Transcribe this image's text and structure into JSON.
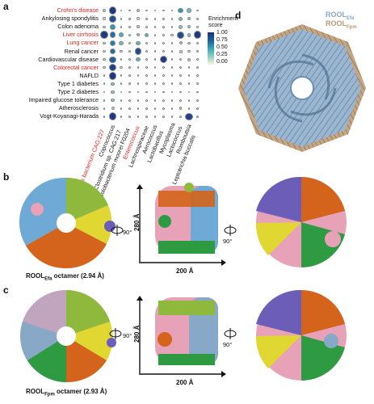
{
  "panel_labels": {
    "a": "a",
    "b": "b",
    "c": "c",
    "d": "d"
  },
  "colors": {
    "highlight_red": "#e0251c",
    "scale": [
      "#f6f4dc",
      "#8fd0c0",
      "#34a7b9",
      "#1d5f9c",
      "#1d2f7d"
    ],
    "rool_blue": "#87a8c6",
    "rool_tan": "#b69a77",
    "domain_yellow": "#e0d733",
    "domain_green": "#2e9b43",
    "domain_orange": "#d4641c",
    "domain_pink": "#e8a2b8",
    "domain_cyan": "#6fa9d6",
    "domain_purple": "#6c5db8",
    "domain_lime": "#8fb93c"
  },
  "chart_data": {
    "type": "heatmap",
    "subtype": "bubble",
    "legend_title": "Enrichment score",
    "legend_ticks": [
      "1.00",
      "0.75",
      "0.50",
      "0.25",
      "0.00"
    ],
    "legend_placement": "right",
    "rows": [
      {
        "label": "Crohn's disease",
        "highlight": true
      },
      {
        "label": "Ankylosing spondylitis",
        "highlight": false
      },
      {
        "label": "Colon adenoma",
        "highlight": false
      },
      {
        "label": "Liver cirrhosis",
        "highlight": true
      },
      {
        "label": "Lung cancer",
        "highlight": true
      },
      {
        "label": "Renal cancer",
        "highlight": false
      },
      {
        "label": "Cardiovascular disease",
        "highlight": false
      },
      {
        "label": "Colorectal cancer",
        "highlight": true
      },
      {
        "label": "NAFLD",
        "highlight": false
      },
      {
        "label": "Type 1 diabetes",
        "highlight": false
      },
      {
        "label": "Type 2 diabetes",
        "highlight": false
      },
      {
        "label": "Impaired glucose tolerance",
        "highlight": false
      },
      {
        "label": "Atherosclerosis",
        "highlight": false
      },
      {
        "label": "Vogt-Koyanagi-Harada",
        "highlight": false
      }
    ],
    "columns": [
      {
        "label": "Firmicutes bacterium CAG:227",
        "highlight": true
      },
      {
        "label": "Coprococcus",
        "highlight": false
      },
      {
        "label": "Clostridium sp. CAG:217",
        "highlight": false
      },
      {
        "label": "Solobacterium moorei F0204",
        "highlight": false
      },
      {
        "label": "Enterococcus",
        "highlight": true
      },
      {
        "label": "Lachnospiraceae",
        "highlight": false
      },
      {
        "label": "Aerococcus",
        "highlight": false
      },
      {
        "label": "Lactobacillus",
        "highlight": false
      },
      {
        "label": "Mycoplasma",
        "highlight": false
      },
      {
        "label": "Lactococcus",
        "highlight": false
      },
      {
        "label": "Romboutsia",
        "highlight": false
      },
      {
        "label": "Leptotrichia buccalis",
        "highlight": false
      }
    ],
    "values": [
      [
        0.15,
        0.95,
        0.05,
        0.05,
        0.2,
        0.05,
        0.05,
        0.05,
        0.05,
        0.55,
        0.35,
        0.05
      ],
      [
        0.1,
        0.85,
        0.05,
        0.05,
        0.1,
        0.05,
        0.05,
        0.05,
        0.05,
        0.35,
        0.25,
        0.05
      ],
      [
        0.1,
        0.55,
        0.05,
        0.1,
        0.15,
        0.05,
        0.05,
        0.05,
        0.05,
        0.3,
        0.2,
        0.05
      ],
      [
        0.95,
        0.7,
        0.45,
        0.1,
        0.25,
        0.4,
        0.05,
        0.05,
        0.1,
        0.85,
        0.3,
        0.95
      ],
      [
        0.1,
        0.65,
        0.35,
        0.1,
        0.4,
        0.05,
        0.05,
        0.05,
        0.05,
        0.2,
        0.15,
        0.05
      ],
      [
        0.1,
        0.7,
        0.1,
        0.05,
        0.85,
        0.05,
        0.05,
        0.05,
        0.05,
        0.2,
        0.1,
        0.05
      ],
      [
        0.1,
        0.75,
        0.05,
        0.05,
        0.4,
        0.05,
        0.05,
        0.95,
        0.05,
        0.15,
        0.2,
        0.05
      ],
      [
        0.1,
        0.9,
        0.1,
        0.05,
        0.05,
        0.05,
        0.05,
        0.05,
        0.05,
        0.1,
        0.05,
        0.05
      ],
      [
        0.05,
        0.95,
        0.05,
        0.05,
        0.05,
        0.05,
        0.05,
        0.05,
        0.05,
        0.1,
        0.05,
        0.05
      ],
      [
        0.05,
        0.3,
        0.05,
        0.05,
        0.05,
        0.05,
        0.05,
        0.05,
        0.05,
        0.05,
        0.05,
        0.05
      ],
      [
        0.05,
        0.25,
        0.05,
        0.05,
        0.05,
        0.05,
        0.05,
        0.05,
        0.05,
        0.05,
        0.05,
        0.05
      ],
      [
        0.05,
        0.25,
        0.05,
        0.05,
        0.05,
        0.05,
        0.05,
        0.05,
        0.05,
        0.05,
        0.05,
        0.05
      ],
      [
        0.05,
        0.2,
        0.05,
        0.05,
        0.05,
        0.05,
        0.05,
        0.05,
        0.05,
        0.15,
        0.05,
        0.05
      ],
      [
        0.05,
        0.95,
        0.05,
        0.05,
        0.05,
        0.05,
        0.05,
        0.05,
        0.05,
        0.05,
        0.9,
        0.05
      ]
    ]
  },
  "panel_d": {
    "legend_1_main": "ROOL",
    "legend_1_sub": "Efa",
    "legend_2_main": "ROOL",
    "legend_2_sub": "Fpm"
  },
  "panel_b": {
    "caption_main": "ROOL",
    "caption_sub": "Efa",
    "caption_tail": " octamer (2.94 Å)",
    "height_label": "280 Å",
    "width_label": "200 Å",
    "rotation_1": "90°",
    "rotation_2": "90°"
  },
  "panel_c": {
    "caption_main": "ROOL",
    "caption_sub": "Fpm",
    "caption_tail": " octamer (2.93 Å)",
    "height_label": "280 Å",
    "width_label": "200 Å",
    "rotation_1": "90°",
    "rotation_2": "90°"
  }
}
